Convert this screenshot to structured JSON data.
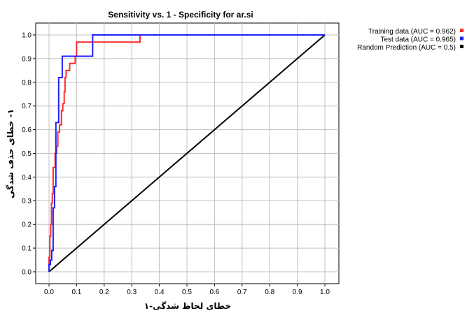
{
  "chart_data": {
    "type": "line",
    "title": "Sensitivity vs. 1 - Specificity for ar.si",
    "xlabel": "خطای لحاظ شدگی-۱",
    "ylabel": "۱- خطای حذف شدگی",
    "xlim": [
      0,
      1
    ],
    "ylim": [
      0,
      1
    ],
    "x_ticks": [
      "0.0",
      "0.1",
      "0.2",
      "0.3",
      "0.4",
      "0.5",
      "0.6",
      "0.7",
      "0.8",
      "0.9",
      "1.0"
    ],
    "y_ticks": [
      "0.0",
      "0.1",
      "0.2",
      "0.3",
      "0.4",
      "0.5",
      "0.6",
      "0.7",
      "0.8",
      "0.9",
      "1.0"
    ],
    "grid": true,
    "legend_position": "top-right",
    "series": [
      {
        "name": "Training data (AUC = 0.962)",
        "color": "#ff2a2a",
        "points": [
          [
            0,
            0
          ],
          [
            0,
            0.06
          ],
          [
            0.003,
            0.06
          ],
          [
            0.003,
            0.15
          ],
          [
            0.006,
            0.15
          ],
          [
            0.006,
            0.2
          ],
          [
            0.009,
            0.2
          ],
          [
            0.009,
            0.29
          ],
          [
            0.012,
            0.29
          ],
          [
            0.012,
            0.33
          ],
          [
            0.015,
            0.33
          ],
          [
            0.015,
            0.44
          ],
          [
            0.022,
            0.44
          ],
          [
            0.022,
            0.5
          ],
          [
            0.028,
            0.5
          ],
          [
            0.028,
            0.53
          ],
          [
            0.032,
            0.53
          ],
          [
            0.032,
            0.59
          ],
          [
            0.038,
            0.59
          ],
          [
            0.038,
            0.62
          ],
          [
            0.045,
            0.62
          ],
          [
            0.045,
            0.68
          ],
          [
            0.05,
            0.68
          ],
          [
            0.05,
            0.71
          ],
          [
            0.055,
            0.71
          ],
          [
            0.055,
            0.76
          ],
          [
            0.058,
            0.76
          ],
          [
            0.058,
            0.82
          ],
          [
            0.062,
            0.82
          ],
          [
            0.062,
            0.85
          ],
          [
            0.075,
            0.85
          ],
          [
            0.075,
            0.88
          ],
          [
            0.095,
            0.88
          ],
          [
            0.095,
            0.91
          ],
          [
            0.1,
            0.91
          ],
          [
            0.1,
            0.97
          ],
          [
            0.33,
            0.97
          ],
          [
            0.33,
            1.0
          ],
          [
            1.0,
            1.0
          ]
        ]
      },
      {
        "name": "Test data (AUC = 0.965)",
        "color": "#1f1fff",
        "points": [
          [
            0,
            0
          ],
          [
            0,
            0.03
          ],
          [
            0.005,
            0.03
          ],
          [
            0.005,
            0.05
          ],
          [
            0.01,
            0.05
          ],
          [
            0.01,
            0.09
          ],
          [
            0.015,
            0.09
          ],
          [
            0.015,
            0.27
          ],
          [
            0.02,
            0.27
          ],
          [
            0.02,
            0.36
          ],
          [
            0.025,
            0.36
          ],
          [
            0.025,
            0.63
          ],
          [
            0.035,
            0.63
          ],
          [
            0.035,
            0.82
          ],
          [
            0.048,
            0.82
          ],
          [
            0.048,
            0.91
          ],
          [
            0.158,
            0.91
          ],
          [
            0.158,
            1.0
          ],
          [
            1.0,
            1.0
          ]
        ]
      },
      {
        "name": "Random Prediction (AUC = 0.5)",
        "color": "#000000",
        "points": [
          [
            0,
            0
          ],
          [
            1,
            1
          ]
        ]
      }
    ]
  }
}
